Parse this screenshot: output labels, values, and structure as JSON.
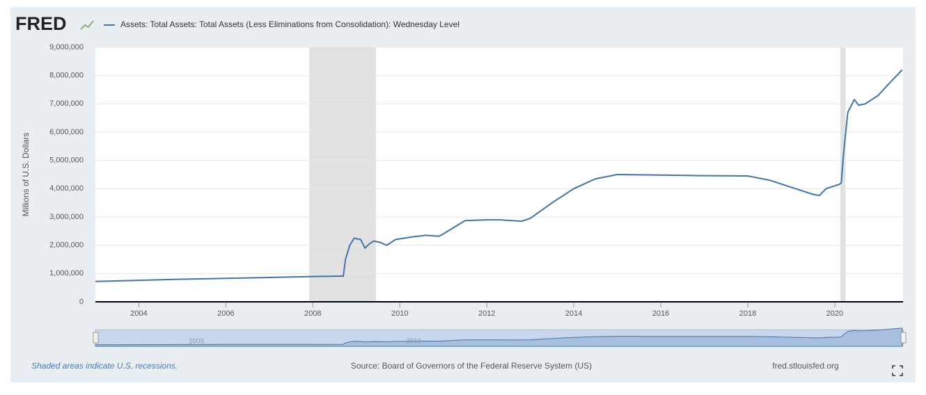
{
  "logo": "FRED",
  "footer": {
    "recession_note": "Shaded areas indicate U.S. recessions.",
    "source": "Source: Board of Governors of the Federal Reserve System (US)",
    "site": "fred.stlouisfed.org"
  },
  "chart_data": {
    "type": "line",
    "ylabel": "Millions of U.S. Dollars",
    "xlim": [
      2003.0,
      2021.57
    ],
    "ylim": [
      0,
      9000000
    ],
    "xticks": [
      2004,
      2006,
      2008,
      2010,
      2012,
      2014,
      2016,
      2018,
      2020
    ],
    "yticks": [
      0,
      {
        "value": 1000000,
        "label": "1,000,000"
      },
      {
        "value": 2000000,
        "label": "2,000,000"
      },
      {
        "value": 3000000,
        "label": "3,000,000"
      },
      {
        "value": 4000000,
        "label": "4,000,000"
      },
      {
        "value": 5000000,
        "label": "5,000,000"
      },
      {
        "value": 6000000,
        "label": "6,000,000"
      },
      {
        "value": 7000000,
        "label": "7,000,000"
      },
      {
        "value": 8000000,
        "label": "8,000,000"
      },
      {
        "value": 9000000,
        "label": "9,000,000"
      }
    ],
    "grid": true,
    "recessions": [
      [
        2007.92,
        2009.45
      ],
      [
        2020.13,
        2020.25
      ]
    ],
    "navigator_labels": [
      "2005",
      "2010"
    ],
    "x": [
      2003.0,
      2004.0,
      2005.0,
      2006.0,
      2007.0,
      2007.9,
      2008.7,
      2008.75,
      2008.85,
      2008.95,
      2009.1,
      2009.2,
      2009.3,
      2009.4,
      2009.55,
      2009.7,
      2009.9,
      2010.3,
      2010.6,
      2010.9,
      2011.0,
      2011.5,
      2012.0,
      2012.3,
      2012.8,
      2013.0,
      2013.5,
      2014.0,
      2014.5,
      2015.0,
      2016.0,
      2017.0,
      2018.0,
      2018.5,
      2019.0,
      2019.5,
      2019.65,
      2019.8,
      2020.1,
      2020.15,
      2020.2,
      2020.3,
      2020.45,
      2020.55,
      2020.7,
      2021.0,
      2021.3,
      2021.55
    ],
    "series": [
      {
        "name": "Assets: Total Assets: Total Assets (Less Eliminations from Consolidation): Wednesday Level",
        "color": "#4572a7",
        "values": [
          720000,
          760000,
          800000,
          830000,
          860000,
          890000,
          910000,
          1500000,
          2000000,
          2250000,
          2200000,
          1900000,
          2050000,
          2150000,
          2100000,
          2000000,
          2200000,
          2300000,
          2350000,
          2320000,
          2400000,
          2870000,
          2900000,
          2900000,
          2850000,
          2950000,
          3500000,
          4000000,
          4350000,
          4500000,
          4480000,
          4460000,
          4450000,
          4300000,
          4050000,
          3800000,
          3760000,
          4000000,
          4150000,
          4200000,
          5200000,
          6700000,
          7150000,
          6950000,
          7000000,
          7300000,
          7800000,
          8200000
        ]
      }
    ]
  }
}
